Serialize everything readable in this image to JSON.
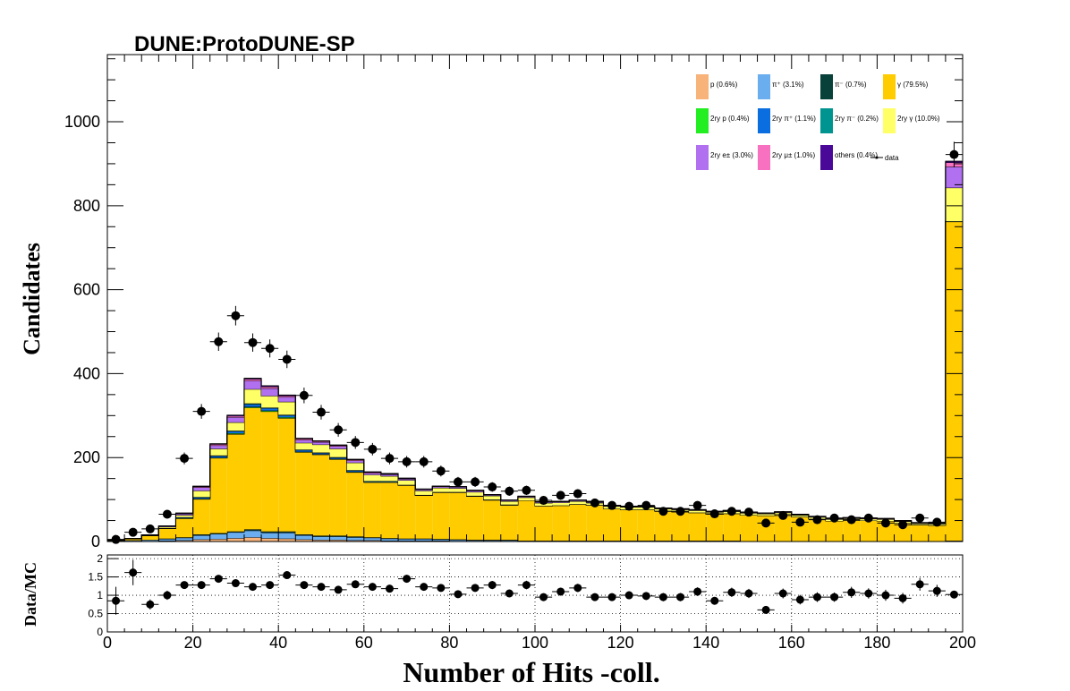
{
  "title": "DUNE:ProtoDUNE-SP",
  "chart_data": {
    "type": "bar",
    "stacked": true,
    "title": "DUNE:ProtoDUNE-SP",
    "xlabel": "Number of Hits -coll.",
    "ylabel": "Candidates",
    "xlim": [
      0,
      200
    ],
    "ylim": [
      0,
      1160
    ],
    "xticks": [
      "0",
      "20",
      "40",
      "60",
      "80",
      "100",
      "120",
      "140",
      "160",
      "180",
      "200"
    ],
    "yticks": [
      "0",
      "200",
      "400",
      "600",
      "800",
      "1000"
    ],
    "bin_edges": [
      0,
      4,
      8,
      12,
      16,
      20,
      24,
      28,
      32,
      36,
      40,
      44,
      48,
      52,
      56,
      60,
      64,
      68,
      72,
      76,
      80,
      84,
      88,
      92,
      96,
      100,
      104,
      108,
      112,
      116,
      120,
      124,
      128,
      132,
      136,
      140,
      144,
      148,
      152,
      156,
      160,
      164,
      168,
      172,
      176,
      180,
      184,
      188,
      192,
      196,
      200
    ],
    "series": [
      {
        "name": "p (0.6%)",
        "color": "#f7b37a",
        "values": [
          0,
          1,
          1,
          2,
          3,
          5,
          6,
          8,
          10,
          8,
          7,
          5,
          4,
          4,
          3,
          3,
          2,
          2,
          2,
          2,
          1,
          1,
          1,
          1,
          1,
          1,
          1,
          1,
          1,
          1,
          1,
          1,
          1,
          1,
          1,
          1,
          1,
          1,
          1,
          0,
          0,
          0,
          0,
          0,
          0,
          0,
          0,
          0,
          0,
          2
        ]
      },
      {
        "name": "π⁺ (3.1%)",
        "color": "#6aaef0",
        "values": [
          1,
          2,
          3,
          4,
          6,
          10,
          12,
          14,
          16,
          13,
          14,
          10,
          8,
          8,
          7,
          6,
          5,
          4,
          4,
          3,
          3,
          2,
          2,
          2,
          1,
          1,
          1,
          1,
          1,
          1,
          1,
          1,
          1,
          1,
          1,
          1,
          1,
          0,
          0,
          0,
          0,
          0,
          0,
          0,
          0,
          0,
          0,
          0,
          0,
          0
        ]
      },
      {
        "name": "π⁻ (0.7%)",
        "color": "#08403a",
        "values": [
          0,
          0,
          0,
          1,
          1,
          2,
          2,
          2,
          3,
          3,
          3,
          2,
          2,
          2,
          2,
          1,
          1,
          1,
          1,
          1,
          1,
          1,
          1,
          1,
          0,
          0,
          0,
          0,
          0,
          0,
          0,
          0,
          0,
          0,
          0,
          0,
          0,
          0,
          0,
          0,
          0,
          0,
          0,
          0,
          0,
          0,
          0,
          0,
          0,
          0
        ]
      },
      {
        "name": "γ (79.5%)",
        "color": "#ffcc00",
        "values": [
          2,
          4,
          10,
          24,
          45,
          84,
          179,
          232,
          290,
          286,
          270,
          196,
          193,
          182,
          153,
          131,
          133,
          127,
          103,
          111,
          112,
          104,
          95,
          83,
          96,
          83,
          84,
          87,
          85,
          76,
          74,
          74,
          71,
          69,
          67,
          63,
          65,
          62,
          61,
          65,
          59,
          54,
          49,
          51,
          50,
          49,
          44,
          40,
          39,
          760
        ]
      },
      {
        "name": "2ry p (0.4%)",
        "color": "#22ee22",
        "values": [
          0,
          0,
          0,
          0,
          1,
          1,
          1,
          2,
          2,
          2,
          2,
          1,
          1,
          1,
          1,
          1,
          1,
          0,
          0,
          0,
          0,
          0,
          0,
          0,
          0,
          0,
          0,
          0,
          0,
          0,
          0,
          0,
          0,
          0,
          0,
          0,
          0,
          0,
          0,
          0,
          0,
          0,
          0,
          0,
          0,
          0,
          0,
          0,
          0,
          1
        ]
      },
      {
        "name": "2ry π⁺ (1.1%)",
        "color": "#0a6ee0",
        "values": [
          0,
          0,
          1,
          1,
          2,
          3,
          4,
          5,
          6,
          6,
          5,
          4,
          3,
          3,
          3,
          2,
          2,
          1,
          1,
          1,
          1,
          1,
          1,
          1,
          0,
          0,
          0,
          0,
          0,
          0,
          0,
          0,
          0,
          0,
          0,
          0,
          0,
          0,
          0,
          0,
          0,
          0,
          0,
          0,
          0,
          0,
          0,
          0,
          0,
          0
        ]
      },
      {
        "name": "2ry π⁻ (0.2%)",
        "color": "#009490",
        "values": [
          0,
          0,
          0,
          0,
          0,
          1,
          1,
          1,
          2,
          1,
          1,
          1,
          1,
          1,
          1,
          0,
          0,
          0,
          0,
          0,
          0,
          0,
          0,
          0,
          0,
          0,
          0,
          0,
          0,
          0,
          0,
          0,
          0,
          0,
          0,
          0,
          0,
          0,
          0,
          0,
          0,
          0,
          0,
          0,
          0,
          0,
          0,
          0,
          0,
          0
        ]
      },
      {
        "name": "2ry γ (10.0%)",
        "color": "#ffff66",
        "values": [
          0,
          0,
          1,
          3,
          5,
          15,
          16,
          20,
          34,
          28,
          31,
          16,
          19,
          20,
          18,
          15,
          12,
          11,
          10,
          10,
          9,
          9,
          9,
          8,
          7,
          7,
          7,
          7,
          6,
          6,
          6,
          6,
          5,
          5,
          5,
          5,
          5,
          5,
          4,
          4,
          4,
          4,
          4,
          4,
          4,
          4,
          4,
          3,
          3,
          80
        ]
      },
      {
        "name": "2ry e± (3.0%)",
        "color": "#b070f0",
        "values": [
          0,
          0,
          0,
          2,
          3,
          8,
          8,
          12,
          20,
          18,
          11,
          7,
          6,
          6,
          5,
          4,
          4,
          3,
          3,
          3,
          3,
          3,
          2,
          2,
          2,
          2,
          2,
          2,
          2,
          1,
          1,
          1,
          1,
          1,
          1,
          1,
          1,
          1,
          1,
          1,
          1,
          1,
          1,
          1,
          1,
          1,
          1,
          1,
          1,
          50
        ]
      },
      {
        "name": "2ry μ± (1.0%)",
        "color": "#f870c0",
        "values": [
          0,
          0,
          0,
          0,
          1,
          2,
          3,
          3,
          4,
          4,
          3,
          3,
          2,
          2,
          2,
          2,
          1,
          1,
          1,
          1,
          1,
          1,
          1,
          1,
          1,
          1,
          1,
          1,
          1,
          1,
          1,
          1,
          1,
          1,
          1,
          1,
          1,
          1,
          1,
          1,
          1,
          1,
          1,
          1,
          1,
          1,
          1,
          1,
          1,
          10
        ]
      },
      {
        "name": "others (0.4%)",
        "color": "#4a0898",
        "values": [
          0,
          0,
          0,
          0,
          1,
          1,
          1,
          2,
          2,
          2,
          2,
          1,
          1,
          1,
          1,
          1,
          1,
          1,
          0,
          0,
          0,
          0,
          0,
          0,
          0,
          0,
          0,
          0,
          0,
          0,
          0,
          0,
          0,
          0,
          0,
          0,
          0,
          0,
          0,
          0,
          0,
          0,
          0,
          0,
          0,
          0,
          0,
          0,
          0,
          3
        ]
      }
    ],
    "data_series": {
      "name": "data",
      "x": [
        2,
        6,
        10,
        14,
        18,
        22,
        26,
        30,
        34,
        38,
        42,
        46,
        50,
        54,
        58,
        62,
        66,
        70,
        74,
        78,
        82,
        86,
        90,
        94,
        98,
        102,
        106,
        110,
        114,
        118,
        122,
        126,
        130,
        134,
        138,
        142,
        146,
        150,
        154,
        158,
        162,
        166,
        170,
        174,
        178,
        182,
        186,
        190,
        194,
        198
      ],
      "y": [
        5,
        22,
        30,
        65,
        198,
        310,
        476,
        538,
        474,
        460,
        434,
        348,
        308,
        266,
        236,
        220,
        198,
        190,
        190,
        168,
        142,
        142,
        130,
        120,
        122,
        98,
        110,
        114,
        92,
        86,
        84,
        86,
        72,
        72,
        86,
        66,
        72,
        70,
        44,
        62,
        46,
        52,
        56,
        52,
        56,
        44,
        40,
        56,
        46,
        922
      ]
    },
    "ratio_panel": {
      "ylabel": "Data/MC",
      "ylim": [
        0,
        2.1
      ],
      "yticks": [
        "0",
        "0.5",
        "1",
        "1.5",
        "2"
      ],
      "x": [
        2,
        6,
        10,
        14,
        18,
        22,
        26,
        30,
        34,
        38,
        42,
        46,
        50,
        54,
        58,
        62,
        66,
        70,
        74,
        78,
        82,
        86,
        90,
        94,
        98,
        102,
        106,
        110,
        114,
        118,
        122,
        126,
        130,
        134,
        138,
        142,
        146,
        150,
        154,
        158,
        162,
        166,
        170,
        174,
        178,
        182,
        186,
        190,
        194,
        198
      ],
      "y": [
        0.85,
        1.62,
        0.75,
        1.0,
        1.28,
        1.28,
        1.45,
        1.33,
        1.23,
        1.28,
        1.55,
        1.28,
        1.23,
        1.15,
        1.3,
        1.23,
        1.18,
        1.45,
        1.23,
        1.2,
        1.03,
        1.2,
        1.28,
        1.05,
        1.28,
        0.95,
        1.1,
        1.2,
        0.95,
        0.95,
        1.0,
        0.98,
        0.95,
        0.95,
        1.1,
        0.85,
        1.08,
        1.05,
        0.6,
        1.05,
        0.88,
        0.95,
        0.95,
        1.08,
        1.05,
        1.0,
        0.92,
        1.3,
        1.12,
        1.02
      ]
    }
  }
}
